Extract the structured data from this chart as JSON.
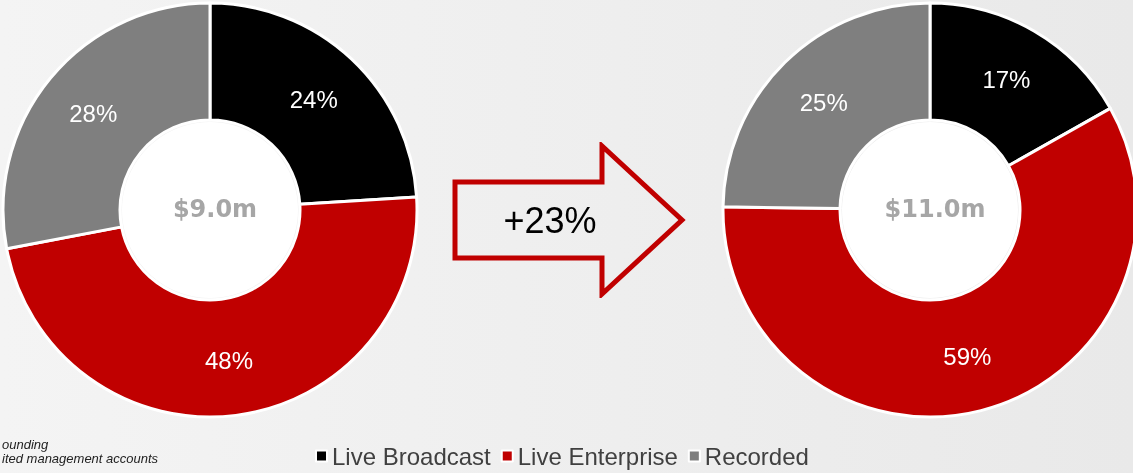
{
  "chart_data": [
    {
      "type": "donut",
      "title": "$9.0m",
      "categories": [
        null,
        null,
        null
      ],
      "values": [
        24,
        48,
        28
      ],
      "value_labels": [
        "24%",
        "48%",
        "28%"
      ],
      "colors": [
        "#000000",
        "#c00000",
        "#7f7f7f"
      ],
      "legend": false,
      "annotations": [
        "+23%",
        "ounding",
        "ited management accounts"
      ]
    },
    {
      "type": "donut",
      "title": "$11.0m",
      "categories": [
        "Live Broadcast",
        "Live Enterprise",
        "Recorded"
      ],
      "values": [
        17,
        59,
        25
      ],
      "value_labels": [
        "17%",
        "59%",
        "25%"
      ],
      "colors": [
        "#000000",
        "#c00000",
        "#7f7f7f"
      ],
      "legend": "bottom"
    }
  ]
}
